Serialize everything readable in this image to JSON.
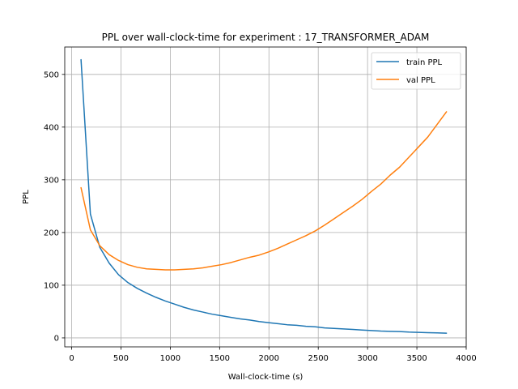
{
  "chart_data": {
    "type": "line",
    "title": "PPL over wall-clock-time for experiment : 17_TRANSFORMER_ADAM",
    "xlabel": "Wall-clock-time (s)",
    "ylabel": "PPL",
    "xlim": [
      -70,
      4000
    ],
    "ylim": [
      -17,
      552
    ],
    "xticks": [
      0,
      500,
      1000,
      1500,
      2000,
      2500,
      3000,
      3500,
      4000
    ],
    "yticks": [
      0,
      100,
      200,
      300,
      400,
      500
    ],
    "grid": true,
    "legend_position": "top-right",
    "series": [
      {
        "name": "train PPL",
        "color": "#1f77b4",
        "x": [
          95,
          190,
          285,
          380,
          475,
          570,
          665,
          760,
          855,
          950,
          1045,
          1140,
          1235,
          1330,
          1425,
          1520,
          1615,
          1710,
          1805,
          1900,
          1995,
          2090,
          2185,
          2280,
          2375,
          2470,
          2565,
          2660,
          2755,
          2850,
          2945,
          3040,
          3135,
          3230,
          3325,
          3420,
          3515,
          3610,
          3705,
          3800
        ],
        "values": [
          528,
          235,
          172,
          142,
          120,
          105,
          94,
          85,
          77,
          70,
          64,
          58,
          53,
          49,
          45,
          42,
          39,
          36,
          34,
          31,
          29,
          27,
          25,
          24,
          22,
          21,
          19,
          18,
          17,
          16,
          15,
          14,
          13,
          12.5,
          12,
          11,
          10.5,
          10,
          9.5,
          9
        ]
      },
      {
        "name": "val PPL",
        "color": "#ff7f0e",
        "x": [
          95,
          190,
          285,
          380,
          475,
          570,
          665,
          760,
          855,
          950,
          1045,
          1140,
          1235,
          1330,
          1425,
          1520,
          1615,
          1710,
          1805,
          1900,
          1995,
          2090,
          2185,
          2280,
          2375,
          2470,
          2565,
          2660,
          2755,
          2850,
          2945,
          3040,
          3135,
          3230,
          3325,
          3420,
          3515,
          3610,
          3705,
          3800
        ],
        "values": [
          285,
          205,
          175,
          158,
          147,
          139,
          134,
          131,
          130,
          129,
          129,
          130,
          131,
          133,
          136,
          139,
          143,
          148,
          153,
          157,
          163,
          170,
          178,
          186,
          194,
          203,
          214,
          226,
          238,
          250,
          263,
          278,
          292,
          309,
          324,
          343,
          362,
          381,
          405,
          429
        ]
      }
    ]
  }
}
